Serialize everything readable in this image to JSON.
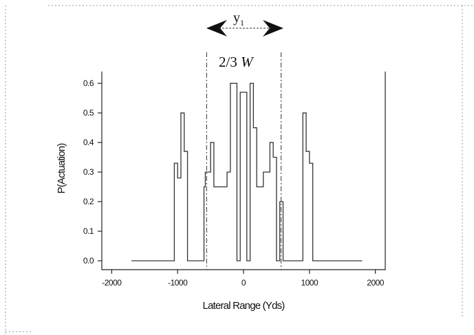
{
  "chart_data": {
    "type": "line",
    "title": "",
    "xlabel": "Lateral Range (Yds)",
    "ylabel": "P(Actuation)",
    "xlim": [
      -2150,
      2150
    ],
    "ylim": [
      -0.03,
      0.64
    ],
    "xticks": [
      -2000,
      -1000,
      0,
      1000,
      2000
    ],
    "xtick_labels": [
      "-2000",
      "-1000",
      "0",
      "1000",
      "2000"
    ],
    "yticks": [
      0.0,
      0.1,
      0.2,
      0.3,
      0.4,
      0.5,
      0.6
    ],
    "ytick_labels": [
      "0.0",
      "0.1",
      "0.2",
      "0.3",
      "0.4",
      "0.5",
      "0.6"
    ],
    "grid": false,
    "legend": "none",
    "series": [
      {
        "step": "post",
        "color": "#333333",
        "x": [
          -1700,
          -1050,
          -1000,
          -950,
          -900,
          -850,
          -600,
          -580,
          -500,
          -450,
          -250,
          -200,
          -100,
          -50,
          50,
          100,
          150,
          200,
          300,
          400,
          450,
          500,
          550,
          600,
          900,
          950,
          1000,
          1050,
          1800
        ],
        "y": [
          0.0,
          0.33,
          0.28,
          0.5,
          0.37,
          0.0,
          0.25,
          0.3,
          0.4,
          0.25,
          0.3,
          0.6,
          0.0,
          0.57,
          0.0,
          0.6,
          0.45,
          0.25,
          0.3,
          0.4,
          0.35,
          0.0,
          0.2,
          0.0,
          0.5,
          0.37,
          0.33,
          0.0,
          0.0
        ]
      }
    ],
    "annotations": [
      {
        "type": "vline",
        "x": -560,
        "style": "dash-dot"
      },
      {
        "type": "vline",
        "x": 570,
        "style": "dash-dot"
      },
      {
        "type": "text",
        "text": "2/3 W",
        "at_x": 0
      },
      {
        "type": "double-arrow",
        "label": "y",
        "label_subscript": "1",
        "at_x": 0
      }
    ]
  }
}
